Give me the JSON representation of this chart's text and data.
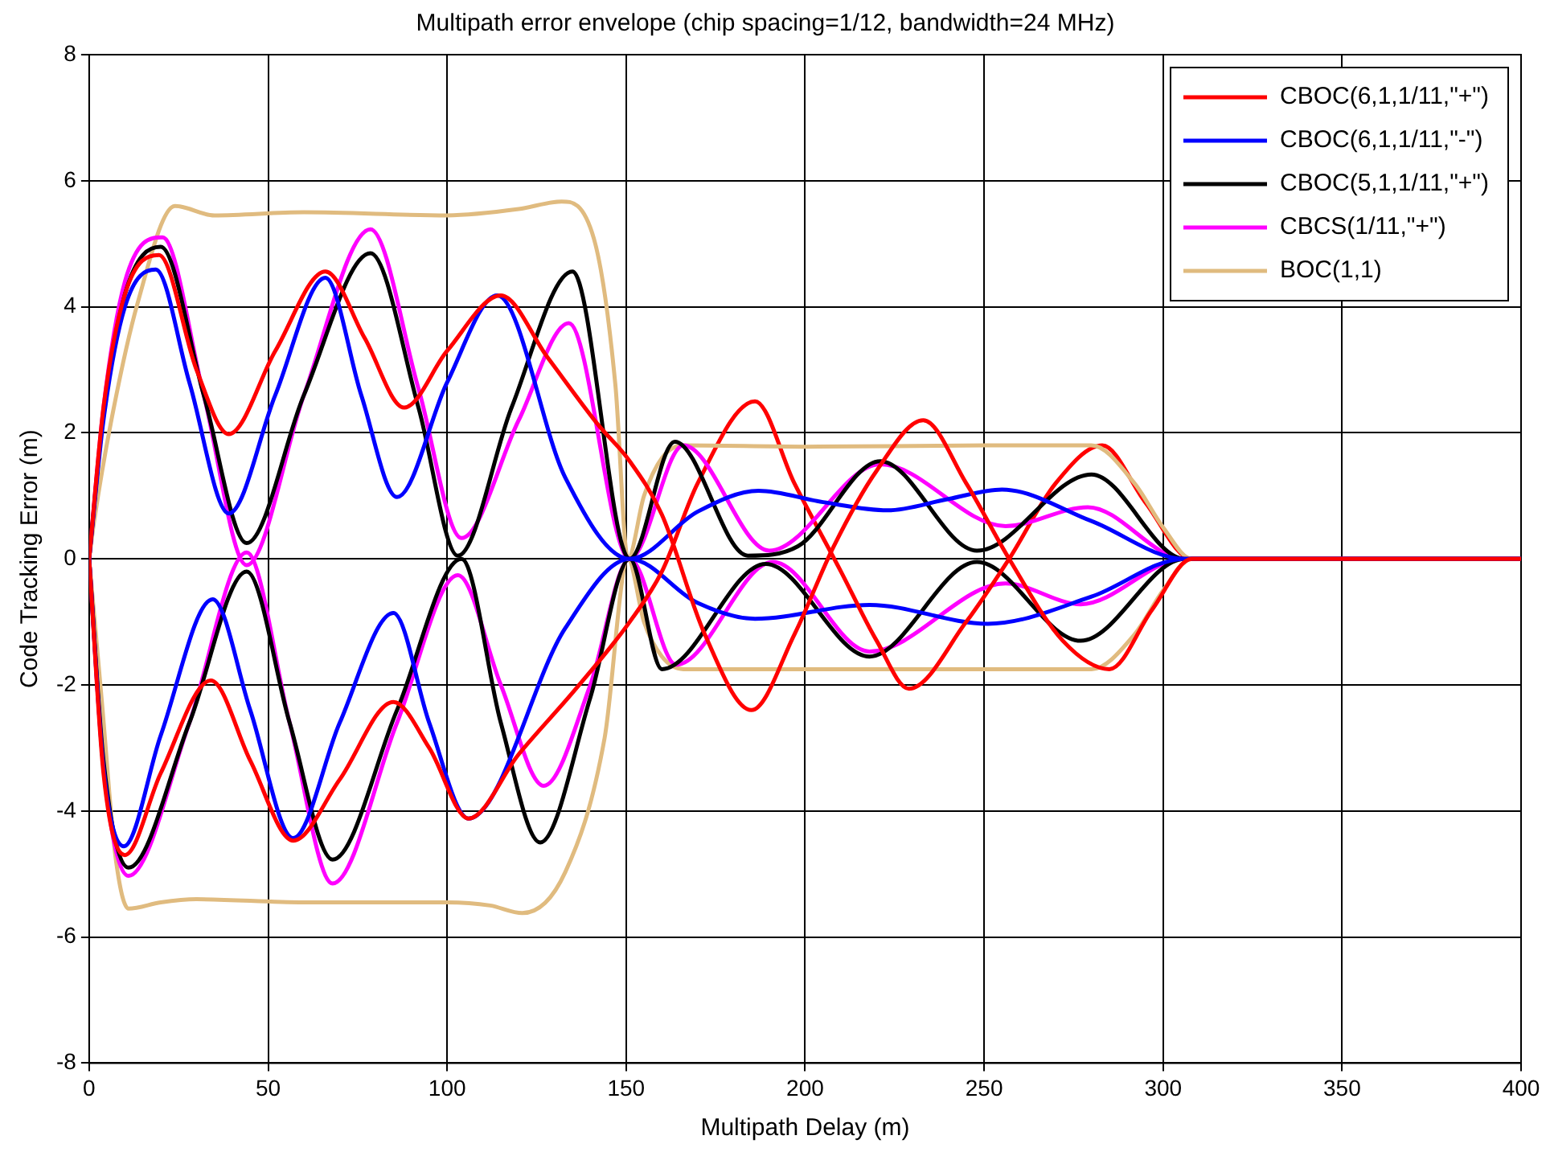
{
  "chart_data": {
    "type": "line",
    "title": "Multipath error envelope (chip spacing=1/12, bandwidth=24 MHz)",
    "xlabel": "Multipath Delay (m)",
    "ylabel": "Code Tracking Error (m)",
    "xlim": [
      0,
      400
    ],
    "xticks": [
      0,
      50,
      100,
      150,
      200,
      250,
      300,
      350,
      400
    ],
    "ylim": [
      -8,
      8
    ],
    "yticks": [
      -8,
      -6,
      -4,
      -2,
      0,
      2,
      4,
      6,
      8
    ],
    "grid": true,
    "legend": "top right",
    "line_style": "solid",
    "series": [
      {
        "name": "CBOC(6,1,1/11,\"+\")",
        "color": "#ff0000",
        "x": [
          0,
          4,
          10,
          19.5,
          30,
          39,
          52,
          66,
          77,
          88,
          100,
          115,
          128,
          142,
          151,
          160,
          172,
          185,
          197,
          208,
          220,
          233,
          245,
          257,
          272,
          285,
          297,
          308,
          400
        ],
        "values": [
          0,
          2.4,
          4.2,
          4.82,
          3.0,
          1.98,
          3.3,
          4.56,
          3.5,
          2.4,
          3.3,
          4.18,
          3.2,
          2.14,
          1.55,
          0.7,
          -1.2,
          -2.4,
          -1.2,
          0.2,
          1.4,
          2.2,
          1.2,
          0,
          -1.3,
          -1.75,
          -0.8,
          0,
          0
        ]
      },
      {
        "name": "CBOC(6,1,1/11,\"-\")",
        "color": "#0000ff",
        "x": [
          0,
          4,
          10,
          18.6,
          28,
          39,
          52,
          66,
          76,
          86,
          100,
          114,
          133,
          151,
          170,
          187,
          205,
          223,
          240,
          255,
          280,
          306,
          400
        ],
        "values": [
          0,
          2.2,
          4.0,
          4.59,
          2.8,
          0.72,
          2.6,
          4.46,
          2.6,
          0.98,
          2.8,
          4.18,
          1.29,
          0,
          0.75,
          1.08,
          0.9,
          0.77,
          0.95,
          1.1,
          0.6,
          0,
          0
        ]
      },
      {
        "name": "CBOC(5,1,1/11,\"+\")",
        "color": "#000000",
        "x": [
          0,
          4,
          10,
          20,
          32,
          44,
          60,
          78.6,
          92,
          103,
          118,
          135,
          151,
          163.6,
          184,
          198,
          221,
          248,
          280,
          306,
          400
        ],
        "values": [
          0,
          2.3,
          4.2,
          4.95,
          2.6,
          0.25,
          2.6,
          4.85,
          2.4,
          0.05,
          2.4,
          4.56,
          0,
          1.86,
          0.05,
          0.2,
          1.55,
          0.13,
          1.34,
          0,
          0
        ]
      },
      {
        "name": "CBCS(1/11,\"+\")",
        "color": "#ff00ff",
        "x": [
          0,
          4,
          10,
          20.5,
          32,
          44,
          60,
          78.6,
          92,
          104,
          120,
          134,
          151,
          166,
          190,
          221,
          256,
          279,
          306,
          400
        ],
        "values": [
          0,
          2.4,
          4.4,
          5.1,
          2.6,
          -0.1,
          2.6,
          5.23,
          2.7,
          0.33,
          2.2,
          3.74,
          0,
          1.8,
          0.13,
          1.5,
          0.52,
          0.82,
          0,
          0
        ]
      },
      {
        "name": "BOC(1,1)",
        "color": "#e0bb7f",
        "x": [
          0,
          1.4,
          6,
          13.5,
          24,
          35,
          60,
          100,
          120,
          132,
          141,
          147,
          150.5,
          155,
          160,
          166,
          200,
          250,
          280,
          292,
          300,
          308,
          400
        ],
        "values": [
          0,
          0.6,
          2.14,
          4.05,
          5.6,
          5.45,
          5.5,
          5.45,
          5.55,
          5.67,
          5.08,
          2.76,
          0,
          1.0,
          1.6,
          1.8,
          1.78,
          1.8,
          1.8,
          1.2,
          0.5,
          0,
          0
        ]
      },
      {
        "color": "#ff0000",
        "x": [
          0,
          4,
          10,
          20,
          34,
          45,
          57,
          70,
          85,
          95,
          106,
          120,
          136,
          151,
          160,
          170,
          186,
          197,
          210,
          220,
          229,
          245,
          257,
          270,
          283,
          295,
          308,
          400
        ],
        "values": [
          0,
          -3.4,
          -4.7,
          -3.4,
          -1.93,
          -3.2,
          -4.47,
          -3.5,
          -2.27,
          -3.0,
          -4.12,
          -3.1,
          -2.06,
          -1.0,
          -0.2,
          1.2,
          2.5,
          1.2,
          -0.2,
          -1.3,
          -2.06,
          -1.0,
          0,
          1.2,
          1.8,
          0.9,
          0,
          0
        ]
      },
      {
        "color": "#0000ff",
        "x": [
          0,
          4,
          9.7,
          20,
          34.5,
          45,
          57,
          70,
          85,
          95,
          106,
          133,
          151,
          170,
          186,
          218,
          251,
          280,
          306,
          400
        ],
        "values": [
          0,
          -3.3,
          -4.56,
          -2.8,
          -0.64,
          -2.4,
          -4.43,
          -2.6,
          -0.86,
          -2.6,
          -4.12,
          -1.1,
          0,
          -0.7,
          -0.95,
          -0.73,
          -1.03,
          -0.6,
          0,
          0
        ]
      },
      {
        "color": "#000000",
        "x": [
          0,
          4,
          11,
          28,
          44,
          56,
          68,
          86,
          104,
          115,
          126,
          140,
          151,
          160,
          189,
          218,
          248,
          277,
          306,
          400
        ],
        "values": [
          0,
          -3.2,
          -4.9,
          -2.6,
          -0.2,
          -2.6,
          -4.77,
          -2.4,
          0,
          -2.6,
          -4.5,
          -2.2,
          0,
          -1.75,
          -0.08,
          -1.55,
          -0.05,
          -1.3,
          0,
          0
        ]
      },
      {
        "color": "#ff00ff",
        "x": [
          0,
          4,
          11,
          28,
          44,
          56,
          68,
          86,
          103,
          115,
          127,
          140,
          151,
          164,
          191,
          218,
          256,
          277,
          306,
          400
        ],
        "values": [
          0,
          -3.3,
          -5.03,
          -2.6,
          0.1,
          -2.6,
          -5.15,
          -2.6,
          -0.26,
          -2.0,
          -3.6,
          -2.0,
          0,
          -1.68,
          -0.05,
          -1.47,
          -0.39,
          -0.72,
          0,
          0
        ]
      },
      {
        "color": "#e0bb7f",
        "x": [
          0,
          3.6,
          7.3,
          11,
          20,
          30,
          60,
          100,
          112,
          121,
          133,
          144,
          150.5,
          155,
          160,
          166,
          200,
          250,
          280,
          292,
          300,
          308,
          400
        ],
        "values": [
          0,
          -2.3,
          -4.7,
          -5.55,
          -5.45,
          -5.4,
          -5.45,
          -5.45,
          -5.5,
          -5.62,
          -4.97,
          -2.84,
          0,
          -1.0,
          -1.55,
          -1.75,
          -1.75,
          -1.75,
          -1.75,
          -1.2,
          -0.5,
          0,
          0
        ]
      }
    ]
  }
}
